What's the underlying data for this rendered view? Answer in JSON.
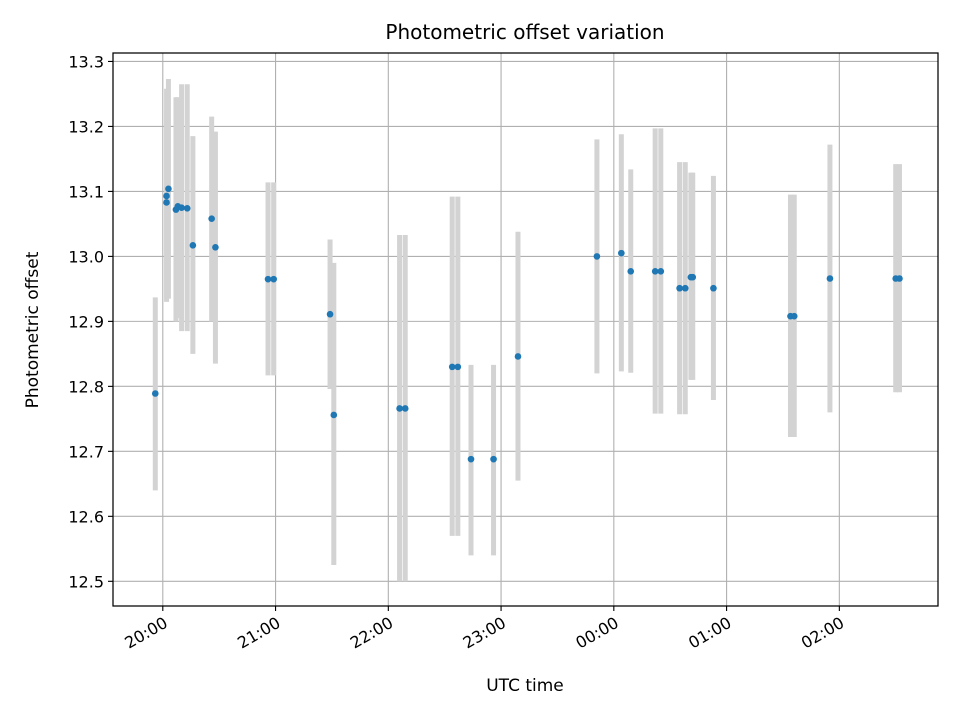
{
  "chart_data": {
    "type": "scatter",
    "title": "Photometric offset variation",
    "xlabel": "UTC time",
    "ylabel": "Photometric offset",
    "x_tick_labels": [
      "20:00",
      "21:00",
      "22:00",
      "23:00",
      "00:00",
      "01:00",
      "02:00"
    ],
    "y_tick_labels": [
      "12.5",
      "12.6",
      "12.7",
      "12.8",
      "12.9",
      "13.0",
      "13.1",
      "13.2",
      "13.3"
    ],
    "y_ticks": [
      12.5,
      12.6,
      12.7,
      12.8,
      12.9,
      13.0,
      13.1,
      13.2,
      13.3
    ],
    "ylim": [
      12.462,
      13.313
    ],
    "xlim_minutes_after_2000": [
      -26.5,
      412.5
    ],
    "grid": true,
    "colors": {
      "marker": "#1f77b4",
      "errorbar": "#d3d3d3",
      "grid": "#b0b0b0"
    },
    "points": [
      {
        "t": "19:56",
        "y": 12.789,
        "ylo": 12.64,
        "yhi": 12.937
      },
      {
        "t": "20:02",
        "y": 13.083,
        "ylo": 12.93,
        "yhi": 13.225
      },
      {
        "t": "20:02",
        "y": 13.093,
        "ylo": 12.935,
        "yhi": 13.258
      },
      {
        "t": "20:03",
        "y": 13.104,
        "ylo": 12.935,
        "yhi": 13.273
      },
      {
        "t": "20:07",
        "y": 13.072,
        "ylo": 12.9,
        "yhi": 13.245
      },
      {
        "t": "20:08",
        "y": 13.077,
        "ylo": 12.905,
        "yhi": 13.245
      },
      {
        "t": "20:10",
        "y": 13.075,
        "ylo": 12.885,
        "yhi": 13.265
      },
      {
        "t": "20:13",
        "y": 13.074,
        "ylo": 12.885,
        "yhi": 13.265
      },
      {
        "t": "20:16",
        "y": 13.017,
        "ylo": 12.85,
        "yhi": 13.185
      },
      {
        "t": "20:26",
        "y": 13.058,
        "ylo": 12.9,
        "yhi": 13.215
      },
      {
        "t": "20:28",
        "y": 13.014,
        "ylo": 12.835,
        "yhi": 13.192
      },
      {
        "t": "20:56",
        "y": 12.965,
        "ylo": 12.817,
        "yhi": 13.114
      },
      {
        "t": "20:59",
        "y": 12.965,
        "ylo": 12.817,
        "yhi": 13.114
      },
      {
        "t": "21:29",
        "y": 12.911,
        "ylo": 12.796,
        "yhi": 13.026
      },
      {
        "t": "21:31",
        "y": 12.756,
        "ylo": 12.525,
        "yhi": 12.99
      },
      {
        "t": "22:06",
        "y": 12.766,
        "ylo": 12.5,
        "yhi": 13.033
      },
      {
        "t": "22:09",
        "y": 12.766,
        "ylo": 12.5,
        "yhi": 13.033
      },
      {
        "t": "22:34",
        "y": 12.83,
        "ylo": 12.57,
        "yhi": 13.092
      },
      {
        "t": "22:37",
        "y": 12.83,
        "ylo": 12.57,
        "yhi": 13.092
      },
      {
        "t": "22:44",
        "y": 12.688,
        "ylo": 12.54,
        "yhi": 12.833
      },
      {
        "t": "22:56",
        "y": 12.688,
        "ylo": 12.54,
        "yhi": 12.833
      },
      {
        "t": "23:09",
        "y": 12.846,
        "ylo": 12.655,
        "yhi": 13.038
      },
      {
        "t": "23:51",
        "y": 13.0,
        "ylo": 12.82,
        "yhi": 13.18
      },
      {
        "t": "00:04",
        "y": 13.005,
        "ylo": 12.823,
        "yhi": 13.188
      },
      {
        "t": "00:09",
        "y": 12.977,
        "ylo": 12.821,
        "yhi": 13.134
      },
      {
        "t": "00:22",
        "y": 12.977,
        "ylo": 12.758,
        "yhi": 13.197
      },
      {
        "t": "00:25",
        "y": 12.977,
        "ylo": 12.758,
        "yhi": 13.197
      },
      {
        "t": "00:35",
        "y": 12.951,
        "ylo": 12.757,
        "yhi": 13.145
      },
      {
        "t": "00:38",
        "y": 12.951,
        "ylo": 12.757,
        "yhi": 13.145
      },
      {
        "t": "00:41",
        "y": 12.968,
        "ylo": 12.81,
        "yhi": 13.129
      },
      {
        "t": "00:42",
        "y": 12.968,
        "ylo": 12.81,
        "yhi": 13.129
      },
      {
        "t": "00:53",
        "y": 12.951,
        "ylo": 12.779,
        "yhi": 13.124
      },
      {
        "t": "01:34",
        "y": 12.908,
        "ylo": 12.722,
        "yhi": 13.095
      },
      {
        "t": "01:36",
        "y": 12.908,
        "ylo": 12.722,
        "yhi": 13.095
      },
      {
        "t": "01:55",
        "y": 12.966,
        "ylo": 12.76,
        "yhi": 13.172
      },
      {
        "t": "02:30",
        "y": 12.966,
        "ylo": 12.791,
        "yhi": 13.142
      },
      {
        "t": "02:32",
        "y": 12.966,
        "ylo": 12.791,
        "yhi": 13.142
      }
    ]
  }
}
